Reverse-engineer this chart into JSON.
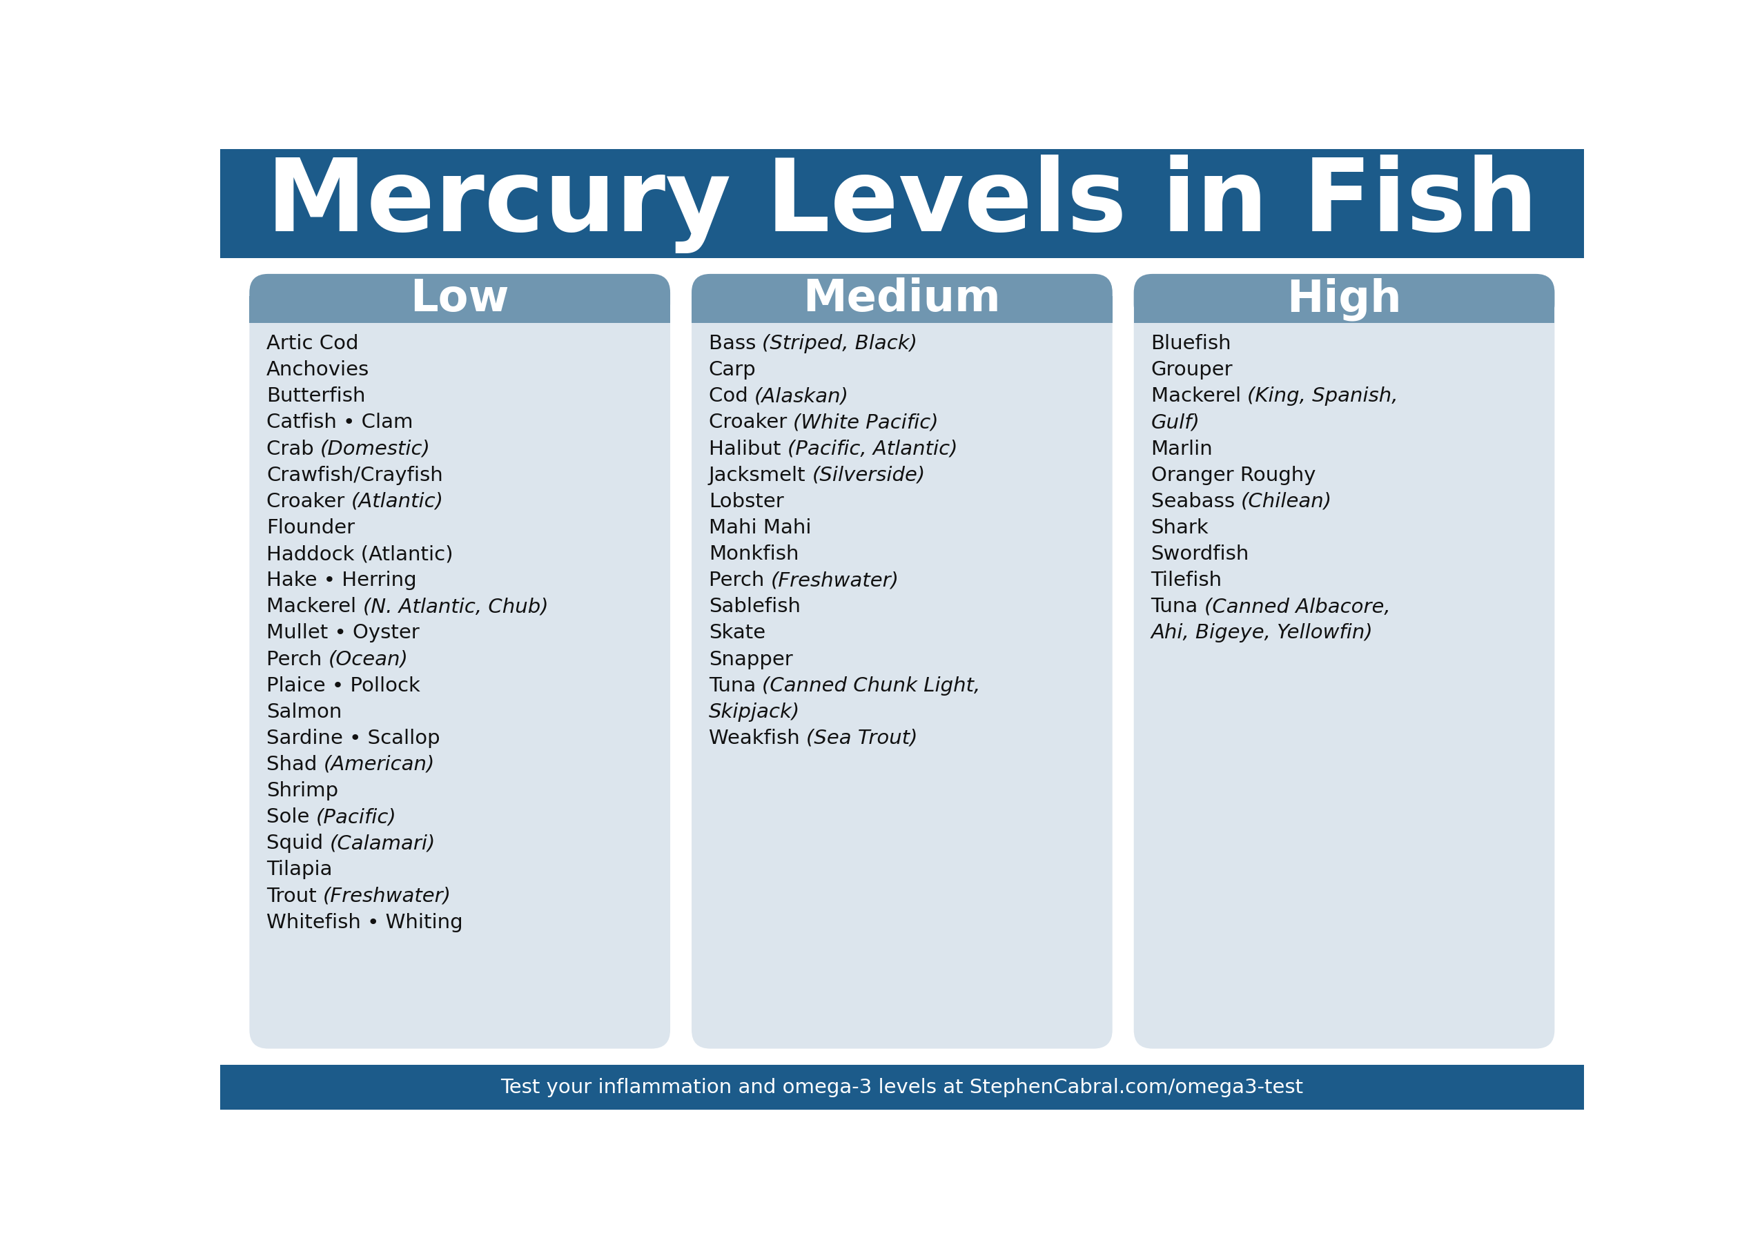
{
  "title": "Mercury Levels in Fish",
  "title_bg": "#1c5b8a",
  "title_color": "#ffffff",
  "footer_text": "Test your inflammation and omega-3 levels at StephenCabral.com/omega3-test",
  "footer_bg": "#1c5b8a",
  "footer_color": "#ffffff",
  "bg_color": "#ffffff",
  "panel_bg": "#dce5ed",
  "panel_header_bg": "#7096b0",
  "panel_header_color": "#ffffff",
  "panel_text_color": "#111111",
  "columns": [
    {
      "header": "Low",
      "items": [
        {
          "normal": "Artic Cod",
          "italic": ""
        },
        {
          "normal": "Anchovies",
          "italic": ""
        },
        {
          "normal": "Butterfish",
          "italic": ""
        },
        {
          "normal": "Catfish • Clam",
          "italic": ""
        },
        {
          "normal": "Crab ",
          "italic": "(Domestic)"
        },
        {
          "normal": "Crawfish/Crayfish",
          "italic": ""
        },
        {
          "normal": "Croaker ",
          "italic": "(Atlantic)"
        },
        {
          "normal": "Flounder",
          "italic": ""
        },
        {
          "normal": "Haddock (Atlantic)",
          "italic": ""
        },
        {
          "normal": "Hake • Herring",
          "italic": ""
        },
        {
          "normal": "Mackerel ",
          "italic": "(N. Atlantic, Chub)"
        },
        {
          "normal": "Mullet • Oyster",
          "italic": ""
        },
        {
          "normal": "Perch ",
          "italic": "(Ocean)"
        },
        {
          "normal": "Plaice • Pollock",
          "italic": ""
        },
        {
          "normal": "Salmon",
          "italic": ""
        },
        {
          "normal": "Sardine • Scallop",
          "italic": ""
        },
        {
          "normal": "Shad ",
          "italic": "(American)"
        },
        {
          "normal": "Shrimp",
          "italic": ""
        },
        {
          "normal": "Sole ",
          "italic": "(Pacific)"
        },
        {
          "normal": "Squid ",
          "italic": "(Calamari)"
        },
        {
          "normal": "Tilapia",
          "italic": ""
        },
        {
          "normal": "Trout ",
          "italic": "(Freshwater)"
        },
        {
          "normal": "Whitefish • Whiting",
          "italic": ""
        }
      ]
    },
    {
      "header": "Medium",
      "items": [
        {
          "normal": "Bass ",
          "italic": "(Striped, Black)"
        },
        {
          "normal": "Carp",
          "italic": ""
        },
        {
          "normal": "Cod ",
          "italic": "(Alaskan)"
        },
        {
          "normal": "Croaker ",
          "italic": "(White Pacific)"
        },
        {
          "normal": "Halibut ",
          "italic": "(Pacific, Atlantic)"
        },
        {
          "normal": "Jacksmelt ",
          "italic": "(Silverside)"
        },
        {
          "normal": "Lobster",
          "italic": ""
        },
        {
          "normal": "Mahi Mahi",
          "italic": ""
        },
        {
          "normal": "Monkfish",
          "italic": ""
        },
        {
          "normal": "Perch ",
          "italic": "(Freshwater)"
        },
        {
          "normal": "Sablefish",
          "italic": ""
        },
        {
          "normal": "Skate",
          "italic": ""
        },
        {
          "normal": "Snapper",
          "italic": ""
        },
        {
          "normal": "Tuna ",
          "italic": "(Canned Chunk Light,\nSkipjack)"
        },
        {
          "normal": "Weakfish ",
          "italic": "(Sea Trout)"
        }
      ]
    },
    {
      "header": "High",
      "items": [
        {
          "normal": "Bluefish",
          "italic": ""
        },
        {
          "normal": "Grouper",
          "italic": ""
        },
        {
          "normal": "Mackerel ",
          "italic": "(King, Spanish,\nGulf)"
        },
        {
          "normal": "Marlin",
          "italic": ""
        },
        {
          "normal": "Oranger Roughy",
          "italic": ""
        },
        {
          "normal": "Seabass ",
          "italic": "(Chilean)"
        },
        {
          "normal": "Shark",
          "italic": ""
        },
        {
          "normal": "Swordfish",
          "italic": ""
        },
        {
          "normal": "Tilefish",
          "italic": ""
        },
        {
          "normal": "Tuna ",
          "italic": "(Canned Albacore,\nAhi, Bigeye, Yellowfin)"
        }
      ]
    }
  ]
}
